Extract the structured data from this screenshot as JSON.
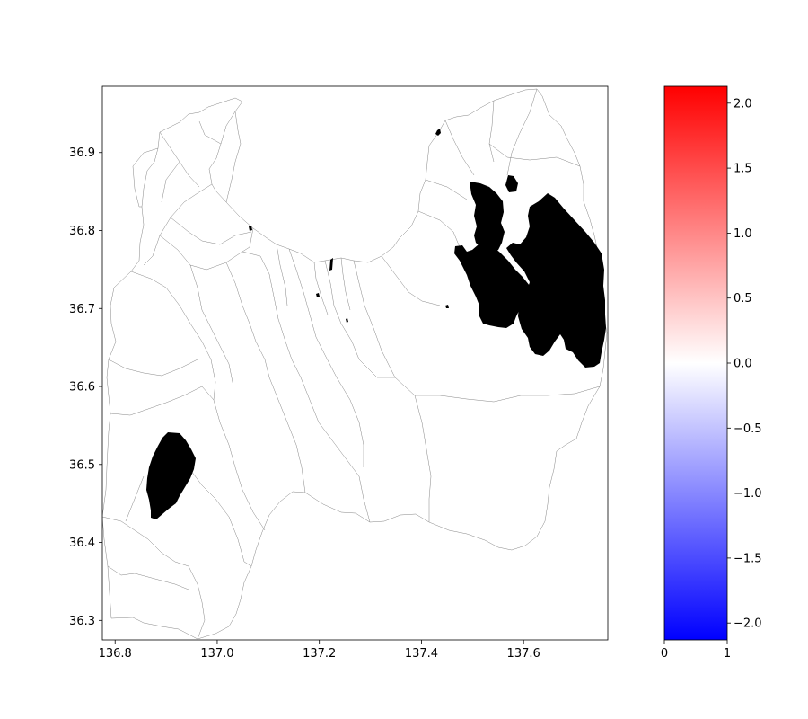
{
  "map": {
    "x_ticks": [
      {
        "value": 136.8,
        "label": "136.8"
      },
      {
        "value": 137.0,
        "label": "137.0"
      },
      {
        "value": 137.2,
        "label": "137.2"
      },
      {
        "value": 137.4,
        "label": "137.4"
      },
      {
        "value": 137.6,
        "label": "137.6"
      }
    ],
    "y_ticks": [
      {
        "value": 36.3,
        "label": "36.3"
      },
      {
        "value": 36.4,
        "label": "36.4"
      },
      {
        "value": 36.5,
        "label": "36.5"
      },
      {
        "value": 36.6,
        "label": "36.6"
      },
      {
        "value": 36.7,
        "label": "36.7"
      },
      {
        "value": 36.8,
        "label": "36.8"
      },
      {
        "value": 36.9,
        "label": "36.9"
      }
    ],
    "xlim": [
      136.775,
      137.765
    ],
    "ylim": [
      36.275,
      36.985
    ],
    "fill_color": "#000000",
    "boundary_color": "#555555",
    "background": "#ffffff"
  },
  "colorbar": {
    "cmap": "bwr",
    "vmin": -2.13,
    "vmax": 2.13,
    "low_color": "#0000ff",
    "mid_color": "#ffffff",
    "high_color": "#ff0000",
    "ticks": [
      {
        "value": -2.0,
        "label": "−2.0"
      },
      {
        "value": -1.5,
        "label": "−1.5"
      },
      {
        "value": -1.0,
        "label": "−1.0"
      },
      {
        "value": -0.5,
        "label": "−0.5"
      },
      {
        "value": 0.0,
        "label": "0.0"
      },
      {
        "value": 0.5,
        "label": "0.5"
      },
      {
        "value": 1.0,
        "label": "1.0"
      },
      {
        "value": 1.5,
        "label": "1.5"
      },
      {
        "value": 2.0,
        "label": "2.0"
      }
    ],
    "x_ticks": [
      {
        "value": 0,
        "label": "0"
      },
      {
        "value": 1,
        "label": "1"
      }
    ]
  }
}
